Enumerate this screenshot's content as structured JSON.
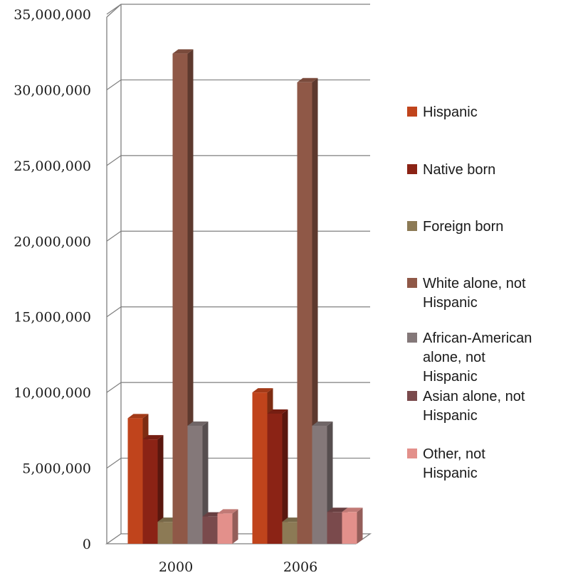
{
  "chart_data": {
    "type": "bar",
    "categories": [
      "2000",
      "2006"
    ],
    "series": [
      {
        "name": "Hispanic",
        "values": [
          8300000,
          10000000
        ],
        "color": "#c0441c"
      },
      {
        "name": "Native born",
        "values": [
          6900000,
          8600000
        ],
        "color": "#8b2315"
      },
      {
        "name": "Foreign born",
        "values": [
          1450000,
          1450000
        ],
        "color": "#8c7a55"
      },
      {
        "name": "White alone, not Hispanic",
        "values": [
          32400000,
          30500000
        ],
        "color": "#8f5847"
      },
      {
        "name": "African-American alone, not Hispanic",
        "values": [
          7800000,
          7800000
        ],
        "color": "#847879"
      },
      {
        "name": "Asian alone, not Hispanic",
        "values": [
          1800000,
          2100000
        ],
        "color": "#7a4a4c"
      },
      {
        "name": "Other, not Hispanic",
        "values": [
          2000000,
          2100000
        ],
        "color": "#e3908b"
      }
    ],
    "yticks": [
      "0",
      "5,000,000",
      "10,000,000",
      "15,000,000",
      "20,000,000",
      "25,000,000",
      "30,000,000",
      "35,000,000"
    ],
    "ylim": [
      0,
      35000000
    ],
    "grid": true,
    "legend_position": "right",
    "title": "",
    "xlabel": "",
    "ylabel": ""
  }
}
